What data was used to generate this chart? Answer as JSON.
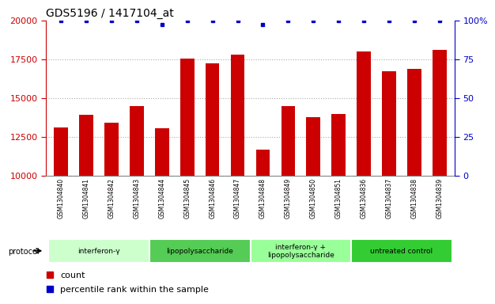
{
  "title": "GDS5196 / 1417104_at",
  "samples": [
    "GSM1304840",
    "GSM1304841",
    "GSM1304842",
    "GSM1304843",
    "GSM1304844",
    "GSM1304845",
    "GSM1304846",
    "GSM1304847",
    "GSM1304848",
    "GSM1304849",
    "GSM1304850",
    "GSM1304851",
    "GSM1304836",
    "GSM1304837",
    "GSM1304838",
    "GSM1304839"
  ],
  "counts": [
    13100,
    13900,
    13400,
    14450,
    13050,
    17550,
    17200,
    17800,
    11650,
    14450,
    13750,
    13950,
    18000,
    16700,
    16850,
    18100
  ],
  "percentile_ranks": [
    100,
    100,
    100,
    100,
    97,
    100,
    100,
    100,
    97,
    100,
    100,
    100,
    100,
    100,
    100,
    100
  ],
  "bar_color": "#cc0000",
  "dot_color": "#0000cc",
  "ylim_left": [
    10000,
    20000
  ],
  "ylim_right": [
    0,
    100
  ],
  "yticks_left": [
    10000,
    12500,
    15000,
    17500,
    20000
  ],
  "yticks_right": [
    0,
    25,
    50,
    75,
    100
  ],
  "ytick_labels_right": [
    "0",
    "25",
    "50",
    "75",
    "100%"
  ],
  "groups": [
    {
      "label": "interferon-γ",
      "start": 0,
      "end": 4,
      "color": "#ccffcc"
    },
    {
      "label": "lipopolysaccharide",
      "start": 4,
      "end": 8,
      "color": "#55cc55"
    },
    {
      "label": "interferon-γ +\nlipopolysaccharide",
      "start": 8,
      "end": 12,
      "color": "#99ff99"
    },
    {
      "label": "untreated control",
      "start": 12,
      "end": 16,
      "color": "#33cc33"
    }
  ],
  "protocol_label": "protocol",
  "legend_count_label": "count",
  "legend_percentile_label": "percentile rank within the sample",
  "grid_color": "#aaaaaa",
  "bg_color": "#ffffff",
  "bar_label_bg": "#d0d0d0",
  "xlabel_color": "#cc0000",
  "ylabel_right_color": "#0000cc",
  "title_fontsize": 10,
  "bar_width": 0.55
}
